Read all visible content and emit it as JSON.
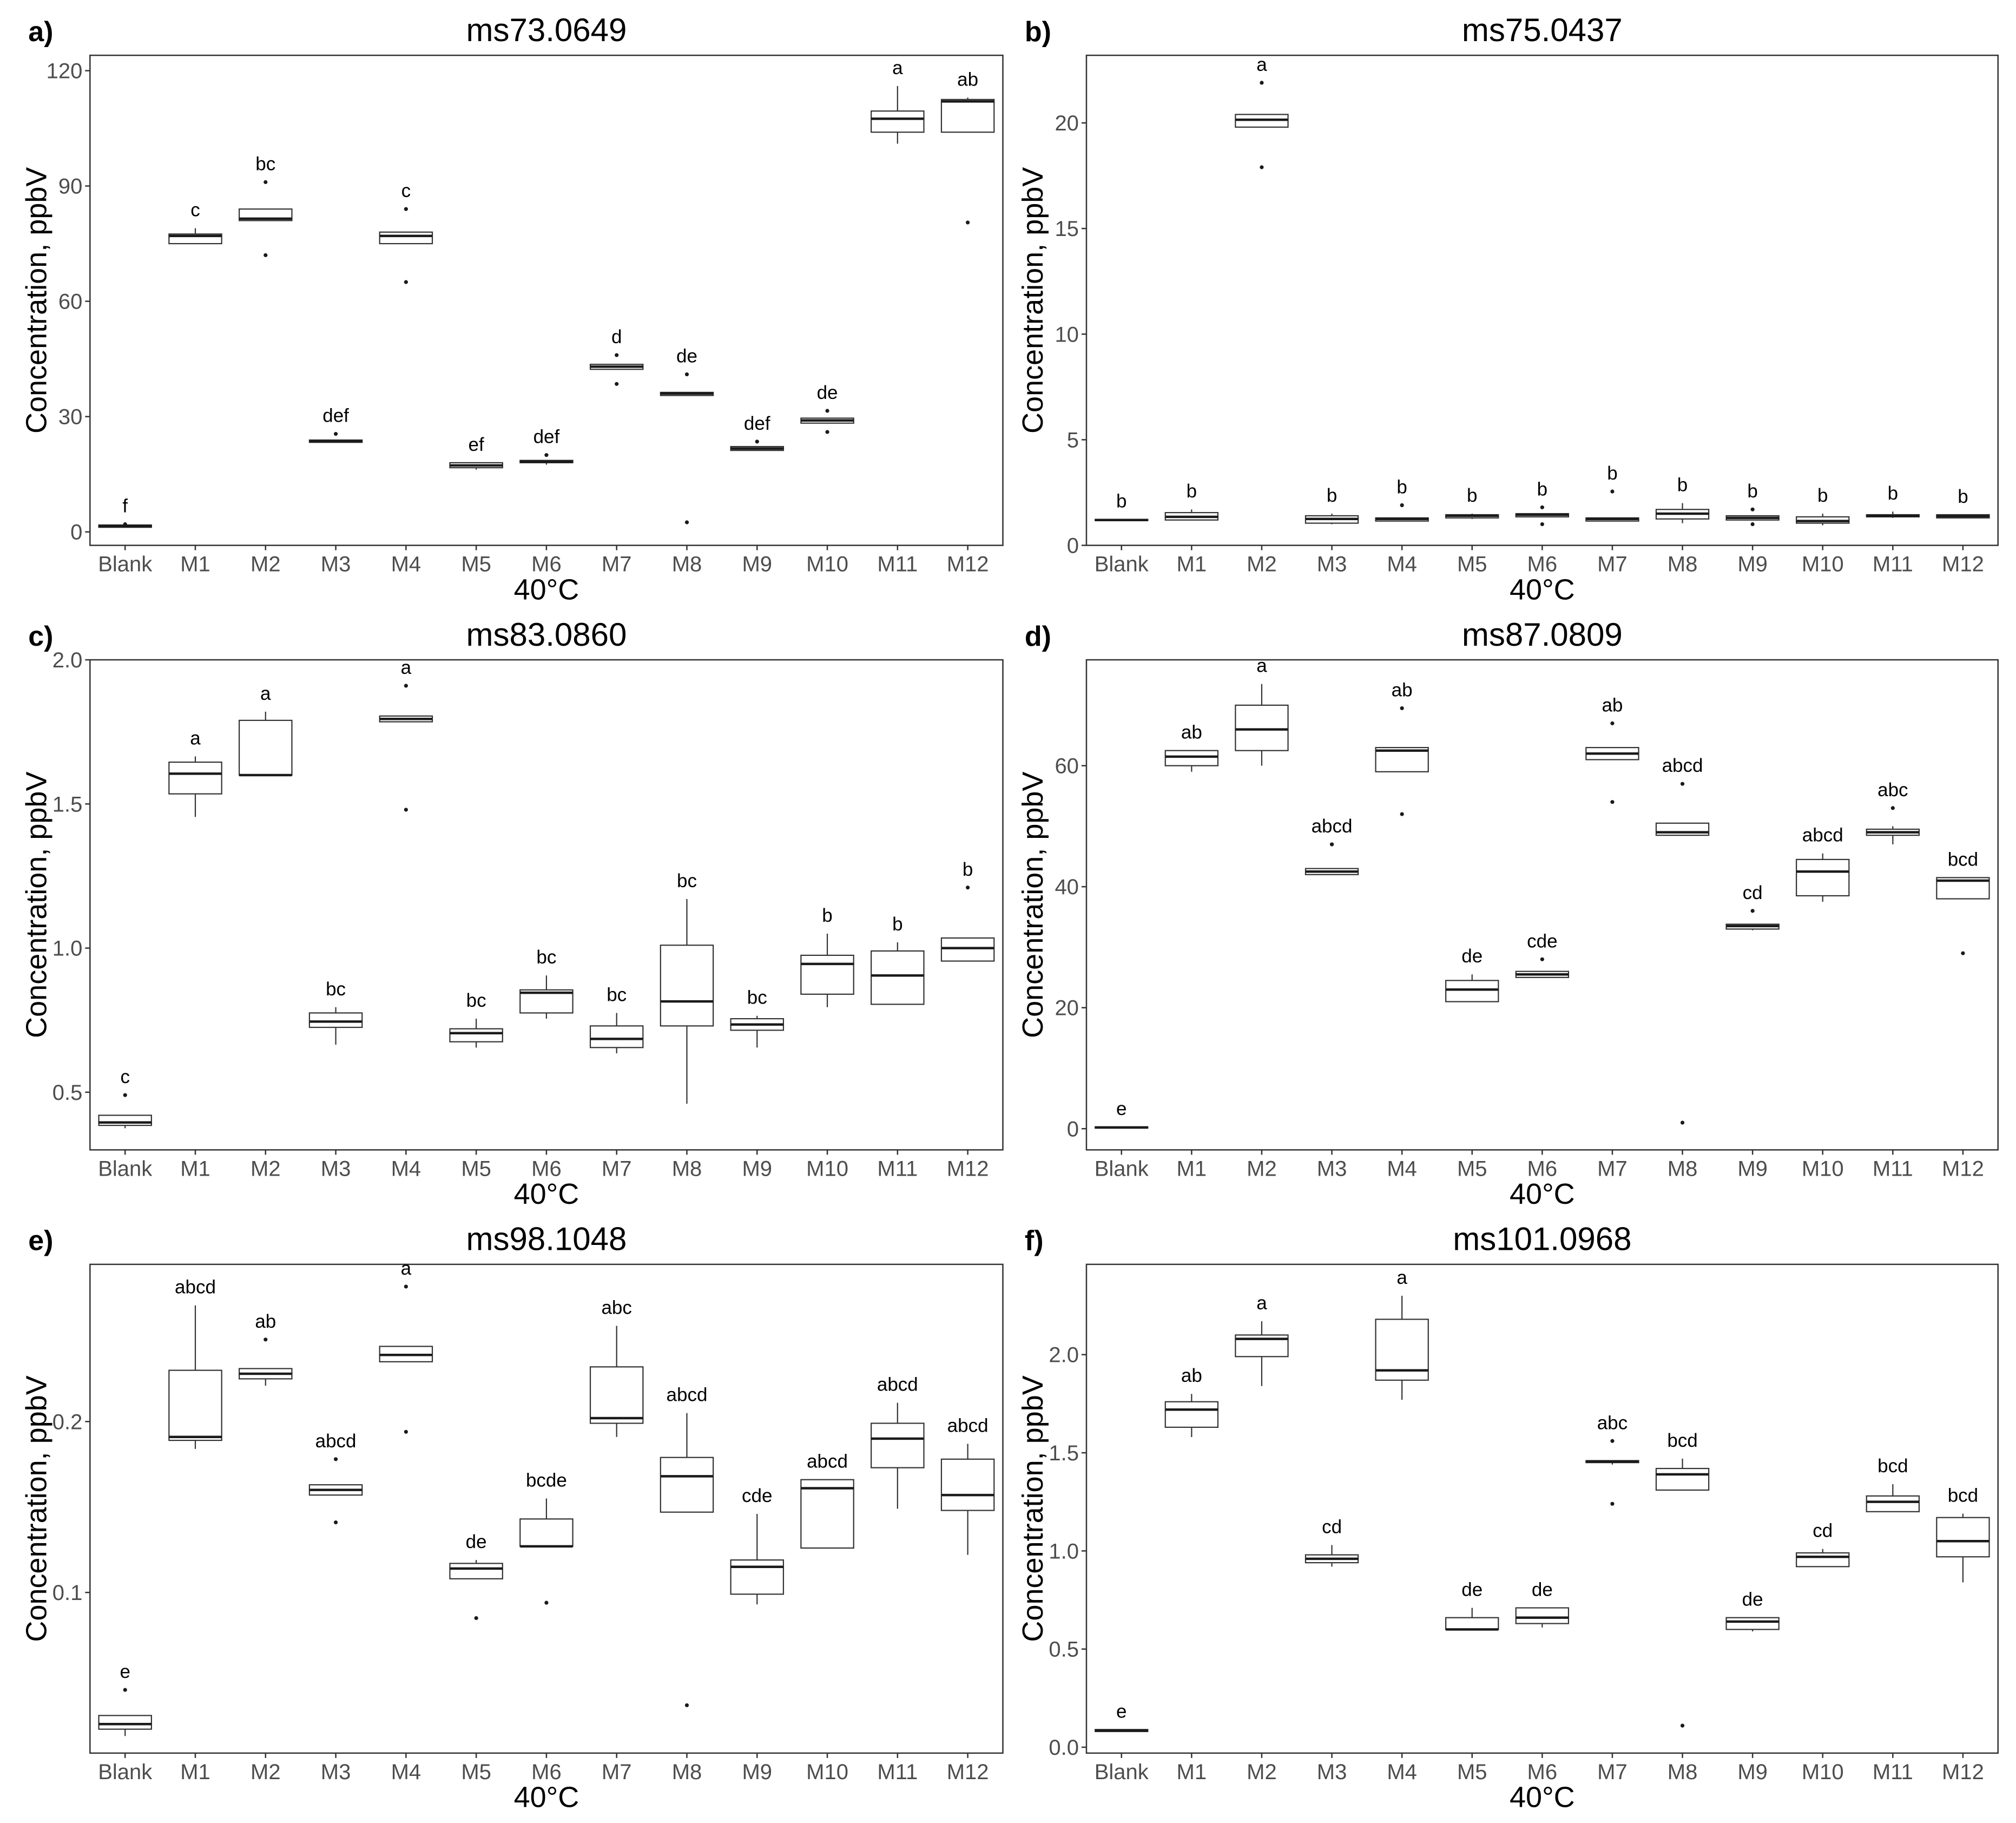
{
  "chart_data": [
    {
      "type": "box",
      "label": "a)",
      "title": "ms73.0649",
      "xlabel": "40°C",
      "ylabel": "Concentration, ppbV",
      "ylim": [
        -3.5,
        124
      ],
      "yticks": [
        0,
        30,
        60,
        90,
        120
      ],
      "ytick_labels": [
        "0",
        "30",
        "60",
        "90",
        "120"
      ],
      "categories": [
        "Blank",
        "M1",
        "M2",
        "M3",
        "M4",
        "M5",
        "M6",
        "M7",
        "M8",
        "M9",
        "M10",
        "M11",
        "M12"
      ],
      "boxes": [
        {
          "q1": 1.2,
          "median": 1.5,
          "q3": 1.8,
          "whislo": 1.2,
          "whishi": 1.8,
          "outliers": [
            2.0
          ]
        },
        {
          "q1": 75,
          "median": 77,
          "q3": 77.5,
          "whislo": 75,
          "whishi": 79,
          "outliers": []
        },
        {
          "q1": 81,
          "median": 81.5,
          "q3": 84,
          "whislo": 81,
          "whishi": 84,
          "outliers": [
            91,
            72
          ]
        },
        {
          "q1": 23.3,
          "median": 23.6,
          "q3": 23.9,
          "whislo": 23.3,
          "whishi": 23.9,
          "outliers": [
            25.5
          ]
        },
        {
          "q1": 75,
          "median": 77,
          "q3": 78,
          "whislo": 75,
          "whishi": 78,
          "outliers": [
            84,
            65
          ]
        },
        {
          "q1": 16.7,
          "median": 17.3,
          "q3": 18,
          "whislo": 16.2,
          "whishi": 18,
          "outliers": []
        },
        {
          "q1": 18,
          "median": 18.3,
          "q3": 18.6,
          "whislo": 17.5,
          "whishi": 18.6,
          "outliers": [
            20
          ]
        },
        {
          "q1": 42.3,
          "median": 43,
          "q3": 43.6,
          "whislo": 42.3,
          "whishi": 43.6,
          "outliers": [
            46,
            38.5
          ]
        },
        {
          "q1": 35.5,
          "median": 36,
          "q3": 36.3,
          "whislo": 35.5,
          "whishi": 36.3,
          "outliers": [
            41,
            2.5
          ]
        },
        {
          "q1": 21.2,
          "median": 21.7,
          "q3": 22.2,
          "whislo": 21.2,
          "whishi": 22.2,
          "outliers": [
            23.5
          ]
        },
        {
          "q1": 28.3,
          "median": 29,
          "q3": 29.6,
          "whislo": 28.3,
          "whishi": 29.6,
          "outliers": [
            31.5,
            26
          ]
        },
        {
          "q1": 104,
          "median": 107.5,
          "q3": 109.5,
          "whislo": 101,
          "whishi": 116,
          "outliers": []
        },
        {
          "q1": 104,
          "median": 112,
          "q3": 112.5,
          "whislo": 104,
          "whishi": 113,
          "outliers": [
            80.5
          ]
        }
      ],
      "letters": [
        "f",
        "c",
        "bc",
        "def",
        "c",
        "ef",
        "def",
        "d",
        "de",
        "def",
        "de",
        "a",
        "ab"
      ]
    },
    {
      "type": "box",
      "label": "b)",
      "title": "ms75.0437",
      "xlabel": "40°C",
      "ylabel": "Concentration, ppbV",
      "ylim": [
        0,
        23.2
      ],
      "yticks": [
        0,
        5,
        10,
        15,
        20
      ],
      "ytick_labels": [
        "0",
        "5",
        "10",
        "15",
        "20"
      ],
      "categories": [
        "Blank",
        "M1",
        "M2",
        "M3",
        "M4",
        "M5",
        "M6",
        "M7",
        "M8",
        "M9",
        "M10",
        "M11",
        "M12"
      ],
      "boxes": [
        {
          "q1": 1.17,
          "median": 1.2,
          "q3": 1.23,
          "whislo": 1.17,
          "whishi": 1.23,
          "outliers": []
        },
        {
          "q1": 1.2,
          "median": 1.35,
          "q3": 1.55,
          "whislo": 1.2,
          "whishi": 1.7,
          "outliers": []
        },
        {
          "q1": 19.8,
          "median": 20.15,
          "q3": 20.4,
          "whislo": 19.8,
          "whishi": 20.4,
          "outliers": [
            21.9,
            17.9
          ]
        },
        {
          "q1": 1.05,
          "median": 1.25,
          "q3": 1.4,
          "whislo": 1.0,
          "whishi": 1.5,
          "outliers": []
        },
        {
          "q1": 1.15,
          "median": 1.25,
          "q3": 1.3,
          "whislo": 1.15,
          "whishi": 1.3,
          "outliers": [
            1.9
          ]
        },
        {
          "q1": 1.3,
          "median": 1.4,
          "q3": 1.45,
          "whislo": 1.25,
          "whishi": 1.5,
          "outliers": []
        },
        {
          "q1": 1.35,
          "median": 1.45,
          "q3": 1.5,
          "whislo": 1.35,
          "whishi": 1.5,
          "outliers": [
            1.8,
            1.0
          ]
        },
        {
          "q1": 1.15,
          "median": 1.25,
          "q3": 1.3,
          "whislo": 1.15,
          "whishi": 1.3,
          "outliers": [
            2.55
          ]
        },
        {
          "q1": 1.25,
          "median": 1.5,
          "q3": 1.7,
          "whislo": 1.05,
          "whishi": 2.0,
          "outliers": []
        },
        {
          "q1": 1.2,
          "median": 1.3,
          "q3": 1.4,
          "whislo": 1.2,
          "whishi": 1.4,
          "outliers": [
            1.7,
            1.0
          ]
        },
        {
          "q1": 1.05,
          "median": 1.15,
          "q3": 1.35,
          "whislo": 0.95,
          "whishi": 1.5,
          "outliers": []
        },
        {
          "q1": 1.35,
          "median": 1.4,
          "q3": 1.45,
          "whislo": 1.3,
          "whishi": 1.6,
          "outliers": []
        },
        {
          "q1": 1.3,
          "median": 1.38,
          "q3": 1.45,
          "whislo": 1.3,
          "whishi": 1.45,
          "outliers": []
        }
      ],
      "letters": [
        "b",
        "b",
        "a",
        "b",
        "b",
        "b",
        "b",
        "b",
        "b",
        "b",
        "b",
        "b",
        "b"
      ]
    },
    {
      "type": "box",
      "label": "c)",
      "title": "ms83.0860",
      "xlabel": "40°C",
      "ylabel": "Concentration, ppbV",
      "ylim": [
        0.3,
        2.0
      ],
      "yticks": [
        0.5,
        1.0,
        1.5,
        2.0
      ],
      "ytick_labels": [
        "0.5",
        "1.0",
        "1.5",
        "2.0"
      ],
      "categories": [
        "Blank",
        "M1",
        "M2",
        "M3",
        "M4",
        "M5",
        "M6",
        "M7",
        "M8",
        "M9",
        "M10",
        "M11",
        "M12"
      ],
      "boxes": [
        {
          "q1": 0.385,
          "median": 0.395,
          "q3": 0.42,
          "whislo": 0.375,
          "whishi": 0.42,
          "outliers": [
            0.49
          ]
        },
        {
          "q1": 1.535,
          "median": 1.605,
          "q3": 1.645,
          "whislo": 1.455,
          "whishi": 1.665,
          "outliers": []
        },
        {
          "q1": 1.6,
          "median": 1.6,
          "q3": 1.79,
          "whislo": 1.6,
          "whishi": 1.82,
          "outliers": []
        },
        {
          "q1": 0.725,
          "median": 0.745,
          "q3": 0.775,
          "whislo": 0.665,
          "whishi": 0.795,
          "outliers": []
        },
        {
          "q1": 1.785,
          "median": 1.795,
          "q3": 1.805,
          "whislo": 1.785,
          "whishi": 1.805,
          "outliers": [
            1.91,
            1.48
          ]
        },
        {
          "q1": 0.675,
          "median": 0.705,
          "q3": 0.72,
          "whislo": 0.655,
          "whishi": 0.755,
          "outliers": []
        },
        {
          "q1": 0.775,
          "median": 0.845,
          "q3": 0.855,
          "whislo": 0.755,
          "whishi": 0.905,
          "outliers": []
        },
        {
          "q1": 0.655,
          "median": 0.685,
          "q3": 0.73,
          "whislo": 0.635,
          "whishi": 0.775,
          "outliers": []
        },
        {
          "q1": 0.73,
          "median": 0.815,
          "q3": 1.01,
          "whislo": 0.46,
          "whishi": 1.17,
          "outliers": []
        },
        {
          "q1": 0.715,
          "median": 0.735,
          "q3": 0.755,
          "whislo": 0.655,
          "whishi": 0.765,
          "outliers": []
        },
        {
          "q1": 0.84,
          "median": 0.945,
          "q3": 0.975,
          "whislo": 0.795,
          "whishi": 1.05,
          "outliers": []
        },
        {
          "q1": 0.805,
          "median": 0.905,
          "q3": 0.99,
          "whislo": 0.805,
          "whishi": 1.02,
          "outliers": []
        },
        {
          "q1": 0.955,
          "median": 1.0,
          "q3": 1.035,
          "whislo": 0.955,
          "whishi": 1.035,
          "outliers": [
            1.21
          ]
        }
      ],
      "letters": [
        "c",
        "a",
        "a",
        "bc",
        "a",
        "bc",
        "bc",
        "bc",
        "bc",
        "bc",
        "b",
        "b",
        "b"
      ]
    },
    {
      "type": "box",
      "label": "d)",
      "title": "ms87.0809",
      "xlabel": "40°C",
      "ylabel": "Concentration, ppbV",
      "ylim": [
        -3.5,
        77.5
      ],
      "yticks": [
        0,
        20,
        40,
        60
      ],
      "ytick_labels": [
        "0",
        "20",
        "40",
        "60"
      ],
      "categories": [
        "Blank",
        "M1",
        "M2",
        "M3",
        "M4",
        "M5",
        "M6",
        "M7",
        "M8",
        "M9",
        "M10",
        "M11",
        "M12"
      ],
      "boxes": [
        {
          "q1": 0.1,
          "median": 0.2,
          "q3": 0.3,
          "whislo": 0.1,
          "whishi": 0.3,
          "outliers": []
        },
        {
          "q1": 60,
          "median": 61.5,
          "q3": 62.5,
          "whislo": 59,
          "whishi": 62.5,
          "outliers": []
        },
        {
          "q1": 62.5,
          "median": 66,
          "q3": 70,
          "whislo": 60,
          "whishi": 73.5,
          "outliers": []
        },
        {
          "q1": 42,
          "median": 42.5,
          "q3": 43,
          "whislo": 42,
          "whishi": 43,
          "outliers": [
            47,
            47
          ]
        },
        {
          "q1": 59,
          "median": 62.5,
          "q3": 63,
          "whislo": 59,
          "whishi": 63,
          "outliers": [
            69.5,
            52
          ]
        },
        {
          "q1": 21,
          "median": 23,
          "q3": 24.5,
          "whislo": 21,
          "whishi": 25.5,
          "outliers": []
        },
        {
          "q1": 25,
          "median": 25.5,
          "q3": 26,
          "whislo": 25,
          "whishi": 26,
          "outliers": [
            28
          ]
        },
        {
          "q1": 61,
          "median": 62,
          "q3": 63,
          "whislo": 61,
          "whishi": 63,
          "outliers": [
            67,
            54
          ]
        },
        {
          "q1": 48.5,
          "median": 49,
          "q3": 50.5,
          "whislo": 48.5,
          "whishi": 50.5,
          "outliers": [
            57,
            1
          ]
        },
        {
          "q1": 33,
          "median": 33.5,
          "q3": 33.8,
          "whislo": 32.8,
          "whishi": 33.8,
          "outliers": [
            36
          ]
        },
        {
          "q1": 38.5,
          "median": 42.5,
          "q3": 44.5,
          "whislo": 37.5,
          "whishi": 45.5,
          "outliers": []
        },
        {
          "q1": 48.5,
          "median": 49,
          "q3": 49.5,
          "whislo": 47,
          "whishi": 50,
          "outliers": [
            53
          ]
        },
        {
          "q1": 38,
          "median": 41,
          "q3": 41.5,
          "whislo": 38,
          "whishi": 41.5,
          "outliers": [
            29
          ]
        }
      ],
      "letters": [
        "e",
        "ab",
        "a",
        "abcd",
        "ab",
        "de",
        "cde",
        "ab",
        "abcd",
        "cd",
        "abcd",
        "abc",
        "bcd"
      ]
    },
    {
      "type": "box",
      "label": "e)",
      "title": "ms98.1048",
      "xlabel": "40°C",
      "ylabel": "Concentration, ppbV",
      "ylim": [
        0.006,
        0.292
      ],
      "yticks": [
        0.1,
        0.2
      ],
      "ytick_labels": [
        "0.1",
        "0.2"
      ],
      "categories": [
        "Blank",
        "M1",
        "M2",
        "M3",
        "M4",
        "M5",
        "M6",
        "M7",
        "M8",
        "M9",
        "M10",
        "M11",
        "M12"
      ],
      "boxes": [
        {
          "q1": 0.02,
          "median": 0.023,
          "q3": 0.028,
          "whislo": 0.016,
          "whishi": 0.028,
          "outliers": [
            0.043
          ]
        },
        {
          "q1": 0.189,
          "median": 0.191,
          "q3": 0.23,
          "whislo": 0.184,
          "whishi": 0.268,
          "outliers": []
        },
        {
          "q1": 0.225,
          "median": 0.228,
          "q3": 0.231,
          "whislo": 0.221,
          "whishi": 0.231,
          "outliers": [
            0.248
          ]
        },
        {
          "q1": 0.157,
          "median": 0.16,
          "q3": 0.163,
          "whislo": 0.157,
          "whishi": 0.163,
          "outliers": [
            0.178,
            0.141
          ]
        },
        {
          "q1": 0.235,
          "median": 0.239,
          "q3": 0.244,
          "whislo": 0.235,
          "whishi": 0.244,
          "outliers": [
            0.279,
            0.194
          ]
        },
        {
          "q1": 0.108,
          "median": 0.114,
          "q3": 0.117,
          "whislo": 0.108,
          "whishi": 0.119,
          "outliers": [
            0.085
          ]
        },
        {
          "q1": 0.127,
          "median": 0.127,
          "q3": 0.143,
          "whislo": 0.127,
          "whishi": 0.155,
          "outliers": [
            0.094
          ]
        },
        {
          "q1": 0.199,
          "median": 0.202,
          "q3": 0.232,
          "whislo": 0.191,
          "whishi": 0.256,
          "outliers": []
        },
        {
          "q1": 0.147,
          "median": 0.168,
          "q3": 0.179,
          "whislo": 0.147,
          "whishi": 0.205,
          "outliers": [
            0.034
          ]
        },
        {
          "q1": 0.099,
          "median": 0.115,
          "q3": 0.119,
          "whislo": 0.093,
          "whishi": 0.146,
          "outliers": []
        },
        {
          "q1": 0.126,
          "median": 0.161,
          "q3": 0.166,
          "whislo": 0.126,
          "whishi": 0.166,
          "outliers": []
        },
        {
          "q1": 0.173,
          "median": 0.19,
          "q3": 0.199,
          "whislo": 0.149,
          "whishi": 0.211,
          "outliers": []
        },
        {
          "q1": 0.148,
          "median": 0.157,
          "q3": 0.178,
          "whislo": 0.122,
          "whishi": 0.187,
          "outliers": []
        }
      ],
      "letters": [
        "e",
        "abcd",
        "ab",
        "abcd",
        "a",
        "de",
        "bcde",
        "abc",
        "abcd",
        "cde",
        "abcd",
        "abcd",
        "abcd"
      ]
    },
    {
      "type": "box",
      "label": "f)",
      "title": "ms101.0968",
      "xlabel": "40°C",
      "ylabel": "Concentration, ppbV",
      "ylim": [
        -0.03,
        2.46
      ],
      "yticks": [
        0.0,
        0.5,
        1.0,
        1.5,
        2.0
      ],
      "ytick_labels": [
        "0.0",
        "0.5",
        "1.0",
        "1.5",
        "2.0"
      ],
      "categories": [
        "Blank",
        "M1",
        "M2",
        "M3",
        "M4",
        "M5",
        "M6",
        "M7",
        "M8",
        "M9",
        "M10",
        "M11",
        "M12"
      ],
      "boxes": [
        {
          "q1": 0.08,
          "median": 0.085,
          "q3": 0.09,
          "whislo": 0.08,
          "whishi": 0.09,
          "outliers": []
        },
        {
          "q1": 1.63,
          "median": 1.72,
          "q3": 1.76,
          "whislo": 1.58,
          "whishi": 1.8,
          "outliers": []
        },
        {
          "q1": 1.99,
          "median": 2.08,
          "q3": 2.1,
          "whislo": 1.84,
          "whishi": 2.17,
          "outliers": []
        },
        {
          "q1": 0.94,
          "median": 0.96,
          "q3": 0.98,
          "whislo": 0.92,
          "whishi": 1.03,
          "outliers": []
        },
        {
          "q1": 1.87,
          "median": 1.92,
          "q3": 2.18,
          "whislo": 1.77,
          "whishi": 2.3,
          "outliers": []
        },
        {
          "q1": 0.6,
          "median": 0.6,
          "q3": 0.66,
          "whislo": 0.6,
          "whishi": 0.71,
          "outliers": []
        },
        {
          "q1": 0.63,
          "median": 0.66,
          "q3": 0.71,
          "whislo": 0.61,
          "whishi": 0.71,
          "outliers": []
        },
        {
          "q1": 1.45,
          "median": 1.455,
          "q3": 1.46,
          "whislo": 1.44,
          "whishi": 1.46,
          "outliers": [
            1.56,
            1.24
          ]
        },
        {
          "q1": 1.31,
          "median": 1.39,
          "q3": 1.42,
          "whislo": 1.31,
          "whishi": 1.47,
          "outliers": [
            0.11
          ]
        },
        {
          "q1": 0.6,
          "median": 0.64,
          "q3": 0.66,
          "whislo": 0.59,
          "whishi": 0.66,
          "outliers": []
        },
        {
          "q1": 0.92,
          "median": 0.97,
          "q3": 0.99,
          "whislo": 0.92,
          "whishi": 1.01,
          "outliers": []
        },
        {
          "q1": 1.2,
          "median": 1.25,
          "q3": 1.28,
          "whislo": 1.2,
          "whishi": 1.34,
          "outliers": []
        },
        {
          "q1": 0.97,
          "median": 1.05,
          "q3": 1.17,
          "whislo": 0.84,
          "whishi": 1.19,
          "outliers": []
        }
      ],
      "letters": [
        "e",
        "ab",
        "a",
        "cd",
        "a",
        "de",
        "de",
        "abc",
        "bcd",
        "de",
        "cd",
        "bcd",
        "bcd"
      ]
    }
  ]
}
